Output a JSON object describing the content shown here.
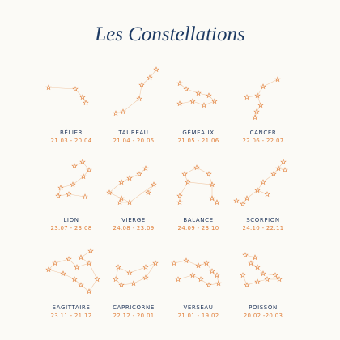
{
  "header": {
    "title": "Les Constellations"
  },
  "signs": [
    {
      "name": "BÉLIER",
      "dates": "21.03 - 20.04"
    },
    {
      "name": "TAUREAU",
      "dates": "21.04 - 20.05"
    },
    {
      "name": "GÉMEAUX",
      "dates": "21.05 - 21.06"
    },
    {
      "name": "CANCER",
      "dates": "22.06 - 22.07"
    },
    {
      "name": "LION",
      "dates": "23.07 - 23.08"
    },
    {
      "name": "VIERGE",
      "dates": "24.08 - 23.09"
    },
    {
      "name": "BALANCE",
      "dates": "24.09 - 23.10"
    },
    {
      "name": "SCORPION",
      "dates": "24.10 - 22.11"
    },
    {
      "name": "SAGITTAIRE",
      "dates": "23.11 - 21.12"
    },
    {
      "name": "CAPRICORNE",
      "dates": "22.12 - 20.01"
    },
    {
      "name": "VERSEAU",
      "dates": "21.01 - 19.02"
    },
    {
      "name": "POISSON",
      "dates": "20.02 -20.03"
    }
  ]
}
